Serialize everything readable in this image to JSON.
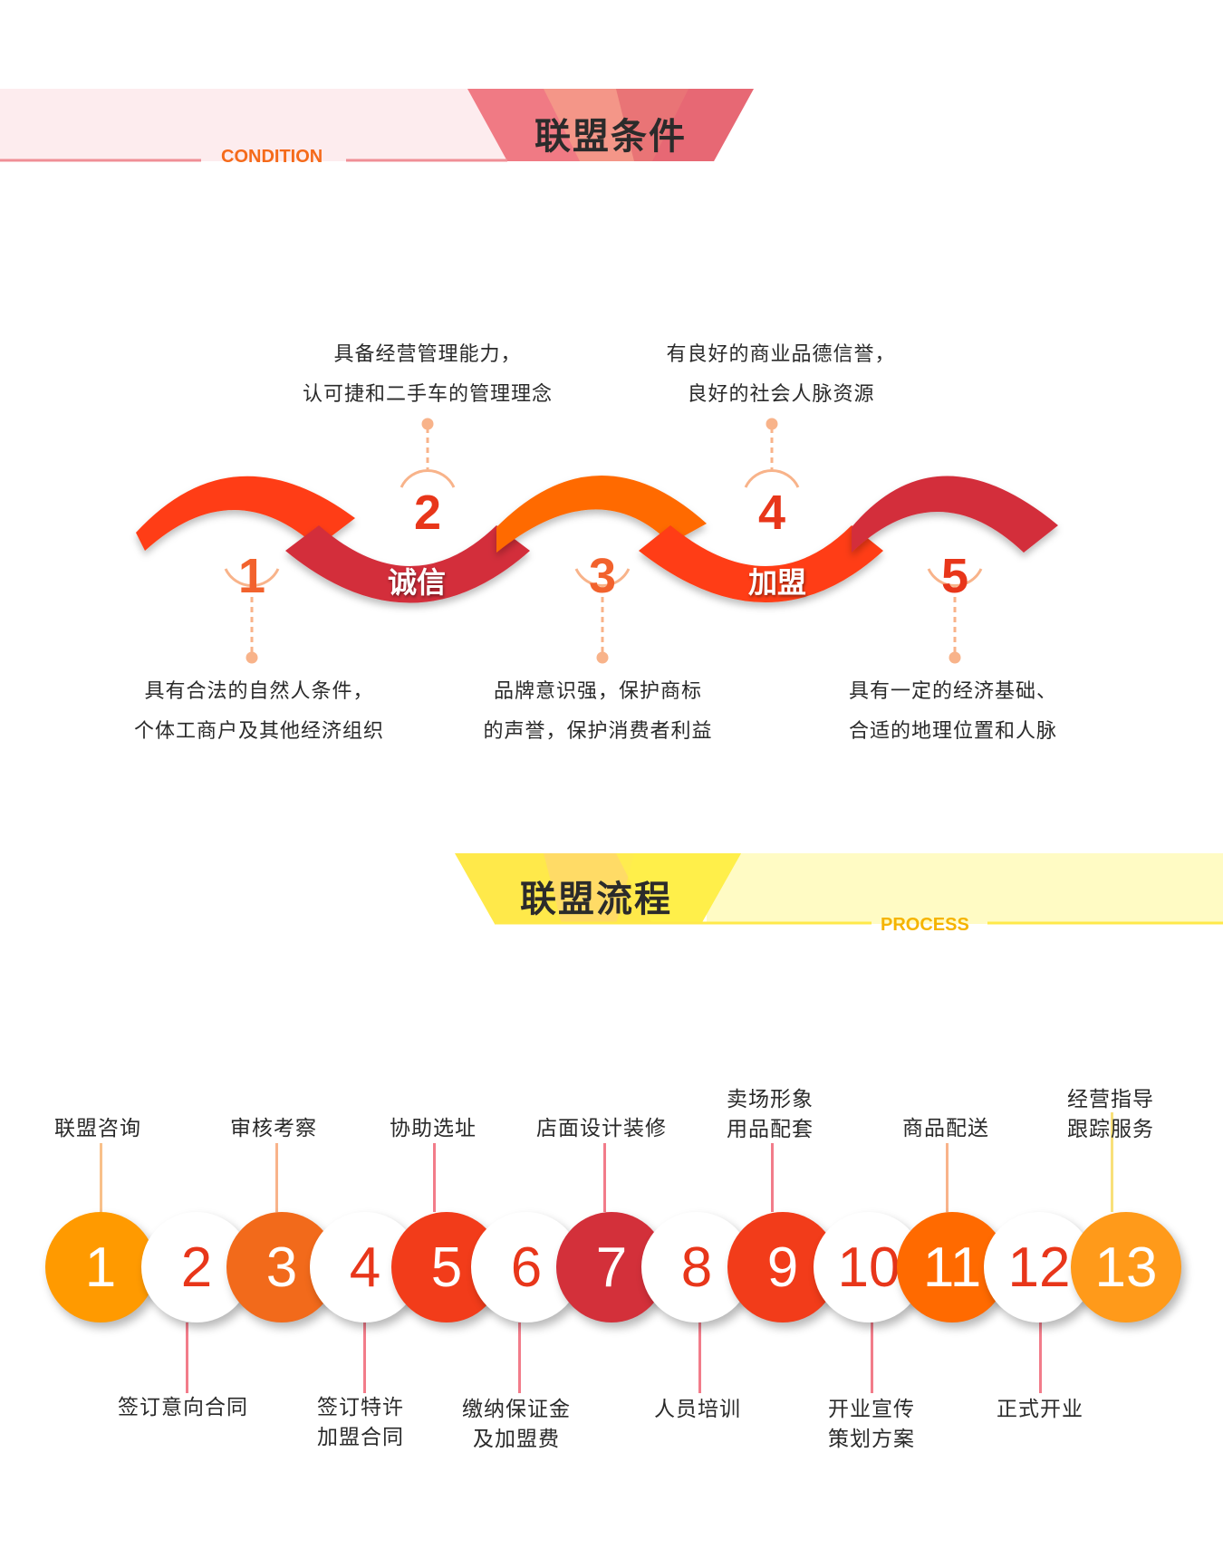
{
  "condition": {
    "title": "联盟条件",
    "subtitle": "CONDITION",
    "band_labels": [
      "诚信",
      "加盟"
    ],
    "items": [
      {
        "number": "1",
        "lines": [
          "具有合法的自然人条件，",
          "个体工商户及其他经济组织"
        ],
        "color": "#f2622d"
      },
      {
        "number": "2",
        "lines": [
          "具备经营管理能力，",
          "认可捷和二手车的管理理念"
        ],
        "color": "#e8361a"
      },
      {
        "number": "3",
        "lines": [
          "品牌意识强，保护商标",
          "的声誉，保护消费者利益"
        ],
        "color": "#f2622d"
      },
      {
        "number": "4",
        "lines": [
          "有良好的商业品德信誉，",
          "良好的社会人脉资源"
        ],
        "color": "#e8361a"
      },
      {
        "number": "5",
        "lines": [
          "具有一定的经济基础、",
          "合适的地理位置和人脉"
        ],
        "color": "#e8361a"
      }
    ],
    "colors": {
      "band_red": "#ff3d12",
      "band_dark": "#d32f3a",
      "band_orange": "#ff6a00",
      "header_pink": "#f08f96"
    }
  },
  "process": {
    "title": "联盟流程",
    "subtitle": "PROCESS",
    "steps": [
      {
        "number": "1",
        "label": [
          "联盟咨询"
        ],
        "position": "top",
        "color": "#ff9a00"
      },
      {
        "number": "2",
        "label": [
          "签订意向合同"
        ],
        "position": "bottom",
        "color": "#ffffff"
      },
      {
        "number": "3",
        "label": [
          "审核考察"
        ],
        "position": "top",
        "color": "#f26a1b"
      },
      {
        "number": "4",
        "label": [
          "签订特许",
          "加盟合同"
        ],
        "position": "bottom",
        "color": "#ffffff"
      },
      {
        "number": "5",
        "label": [
          "协助选址"
        ],
        "position": "top",
        "color": "#f23c1a"
      },
      {
        "number": "6",
        "label": [
          "缴纳保证金",
          "及加盟费"
        ],
        "position": "bottom",
        "color": "#ffffff"
      },
      {
        "number": "7",
        "label": [
          "店面设计装修"
        ],
        "position": "top",
        "color": "#d3303a"
      },
      {
        "number": "8",
        "label": [
          "人员培训"
        ],
        "position": "bottom",
        "color": "#ffffff"
      },
      {
        "number": "9",
        "label": [
          "卖场形象",
          "用品配套"
        ],
        "position": "top",
        "color": "#f23c1a"
      },
      {
        "number": "10",
        "label": [
          "开业宣传",
          "策划方案"
        ],
        "position": "bottom",
        "color": "#ffffff"
      },
      {
        "number": "11",
        "label": [
          "商品配送"
        ],
        "position": "top",
        "color": "#ff6a00"
      },
      {
        "number": "12",
        "label": [
          "正式开业"
        ],
        "position": "bottom",
        "color": "#ffffff"
      },
      {
        "number": "13",
        "label": [
          "经营指导",
          "跟踪服务"
        ],
        "position": "top",
        "color": "#ff9a1a"
      }
    ],
    "colors": {
      "header_yellow": "#ffe94a",
      "connector_top": "#f8b38a",
      "connector_bottom": "#f27c8a"
    }
  }
}
